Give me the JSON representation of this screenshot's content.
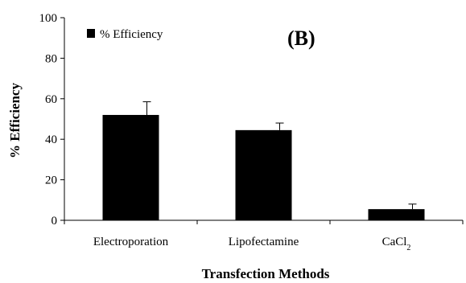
{
  "chart_data": {
    "type": "bar",
    "panel_label": "(B)",
    "xlabel": "Transfection Methods",
    "ylabel": "% Efficiency",
    "ylim": [
      0,
      100
    ],
    "yticks": [
      0,
      20,
      40,
      60,
      80,
      100
    ],
    "grid": false,
    "legend": {
      "position": "top-left",
      "entries": [
        "% Efficiency"
      ]
    },
    "categories": [
      {
        "base": "Electroporation",
        "sub": ""
      },
      {
        "base": "Lipofectamine",
        "sub": ""
      },
      {
        "base": "CaCl",
        "sub": "2"
      }
    ],
    "series": [
      {
        "name": "% Efficiency",
        "values": [
          52,
          44.5,
          5.5
        ],
        "errors": [
          6.5,
          3.5,
          2.5
        ],
        "color": "#000000"
      }
    ]
  }
}
